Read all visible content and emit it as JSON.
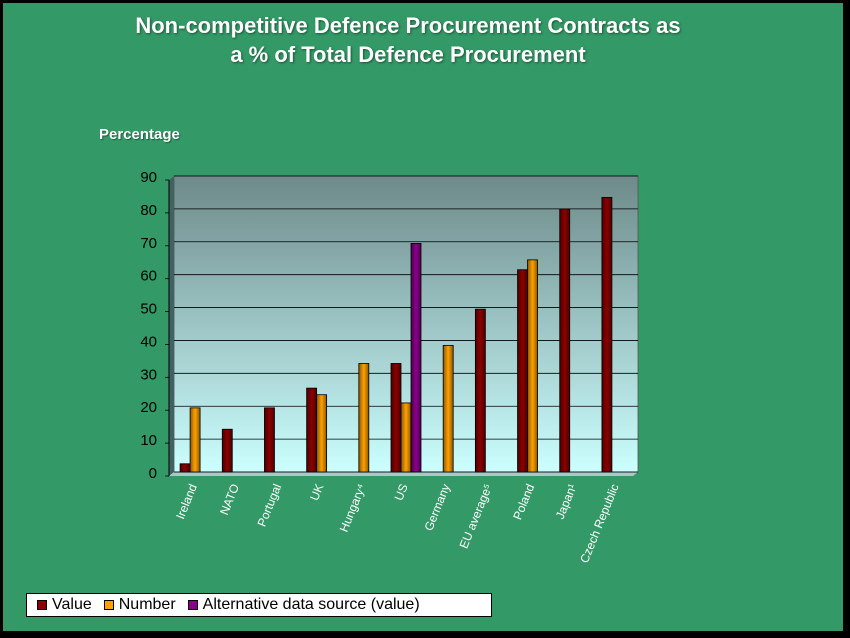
{
  "chart_data": {
    "type": "bar",
    "title_line1": "Non-competitive Defence Procurement Contracts as",
    "title_line2": "a % of Total Defence Procurement",
    "ylabel": "Percentage",
    "xlabel": "",
    "ylim": [
      0,
      90
    ],
    "yticks": [
      0,
      10,
      20,
      30,
      40,
      50,
      60,
      70,
      80,
      90
    ],
    "grid": true,
    "legend_position": "bottom-left",
    "categories": [
      "Ireland",
      "NATO",
      "Portugal",
      "UK",
      "Hungary⁴",
      "US",
      "Germany",
      "EU average⁵",
      "Poland",
      "Japan¹",
      "Czech Republic"
    ],
    "series": [
      {
        "name": "Value",
        "color": "#8b0000",
        "values": [
          2.5,
          13,
          19.5,
          25.5,
          null,
          33,
          null,
          49.5,
          61.5,
          80,
          83.5
        ]
      },
      {
        "name": "Number",
        "color": "#ffa000",
        "values": [
          19.5,
          null,
          null,
          23.5,
          33,
          21,
          38.5,
          null,
          64.5,
          null,
          null
        ]
      },
      {
        "name": "Alternative data source (value)",
        "color": "#8b008b",
        "values": [
          null,
          null,
          null,
          null,
          null,
          69.5,
          null,
          null,
          null,
          null,
          null
        ]
      }
    ],
    "colors": {
      "slide_background": "#339966",
      "plot_top": "#6e8a8a",
      "plot_bottom": "#ccffff"
    }
  }
}
